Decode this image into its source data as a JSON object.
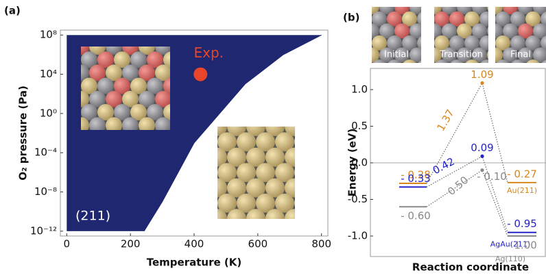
{
  "chart_data": [
    {
      "type": "phase",
      "panel_label": "(a)",
      "x_label": "Temperature (K)",
      "y_label": "O₂ pressure (Pa)",
      "log_y": true,
      "xlim": [
        -20,
        820
      ],
      "ylim": [
        3.2e-13,
        320000000.0
      ],
      "xticks": [
        0,
        200,
        400,
        600,
        800
      ],
      "yticks": [
        {
          "value": 1e-12,
          "label": "10⁻¹²"
        },
        {
          "value": 1e-08,
          "label": "10⁻⁸"
        },
        {
          "value": 0.0001,
          "label": "10⁻⁴"
        },
        {
          "value": 1,
          "label": "10⁰"
        },
        {
          "value": 10000,
          "label": "10⁴"
        },
        {
          "value": 100000000,
          "label": "10⁸"
        }
      ],
      "region_color": "#1f2770",
      "region_label": "(211)",
      "boundary": {
        "x": [
          243,
          300,
          350,
          400,
          480,
          560,
          680,
          800
        ],
        "y": [
          1e-12,
          1e-09,
          1e-06,
          0.001,
          1,
          1000,
          1000000,
          100000000
        ]
      },
      "point": {
        "label": "Exp.",
        "x": 420,
        "y": 10000,
        "color": "#e8452a"
      }
    },
    {
      "type": "energy-levels",
      "panel_label": "(b)",
      "x_label": "Reaction coordinate",
      "y_label": "Energy (eV)",
      "stages": [
        "Initial",
        "Transition",
        "Final"
      ],
      "ylim": [
        -1.28,
        1.29
      ],
      "hline": 0,
      "yticks": [
        {
          "value": -1,
          "label": "-1.0"
        },
        {
          "value": -0.5,
          "label": "-0.5"
        },
        {
          "value": 0,
          "label": "0.0"
        },
        {
          "value": 0.5,
          "label": "0.5"
        },
        {
          "value": 1,
          "label": "1.0"
        }
      ],
      "series": [
        {
          "name": "Au(211)",
          "color": "#d9861a",
          "values": [
            -0.28,
            1.09,
            -0.27
          ],
          "value_labels": [
            "- 0.28",
            "1.09",
            "- 0.27"
          ],
          "barrier_label": "1.37"
        },
        {
          "name": "AgAu(211)",
          "color": "#2323c8",
          "values": [
            -0.33,
            0.09,
            -0.95
          ],
          "value_labels": [
            "- 0.33",
            "0.09",
            "- 0.95"
          ],
          "barrier_label": "0.42"
        },
        {
          "name": "Ag(110)",
          "color": "#888888",
          "values": [
            -0.6,
            -0.1,
            -1.0
          ],
          "value_labels": [
            "- 0.60",
            "- 0.10",
            "- 1.00"
          ],
          "barrier_label": "0.50"
        }
      ]
    }
  ]
}
